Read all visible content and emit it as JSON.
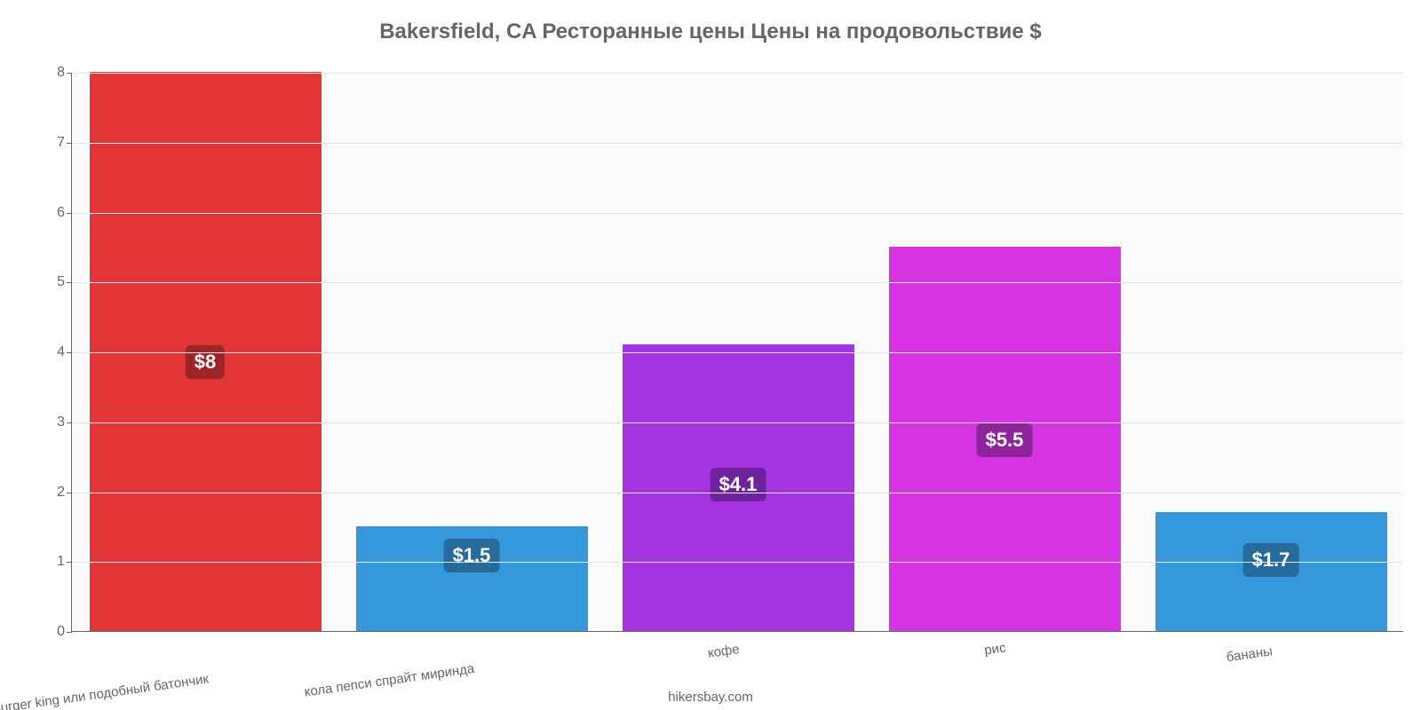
{
  "chart": {
    "type": "bar",
    "title": "Bakersfield, CA Ресторанные цены Цены на продовольствие $",
    "title_fontsize": 24,
    "title_color": "#666666",
    "title_weight": "700",
    "attribution": "hikersbay.com",
    "attribution_fontsize": 15,
    "attribution_color": "#666666",
    "background_color": "#ffffff",
    "plot_background_color": "#fbfbfb",
    "grid_color": "#e6e6e6",
    "axis_color": "#666666",
    "ylim": [
      0,
      8
    ],
    "ytick_step": 1,
    "ytick_fontsize": 16,
    "xlabel_fontsize": 15,
    "xlabel_rotation_deg": -8,
    "value_label_fontsize": 22,
    "bar_width": 0.87,
    "categories": [
      "mac burger king или подобный батончик",
      "кола пепси спрайт миринда",
      "кофе",
      "рис",
      "бананы"
    ],
    "values": [
      8,
      1.5,
      4.1,
      5.5,
      1.7
    ],
    "value_labels": [
      "$8",
      "$1.5",
      "$4.1",
      "$5.5",
      "$1.7"
    ],
    "bar_colors": [
      "#e23636",
      "#3498db",
      "#a633e2",
      "#d633e2",
      "#3498db"
    ],
    "badge_colors": [
      "#9c2525",
      "#256b9c",
      "#6c239c",
      "#8e239c",
      "#256b9c"
    ]
  }
}
